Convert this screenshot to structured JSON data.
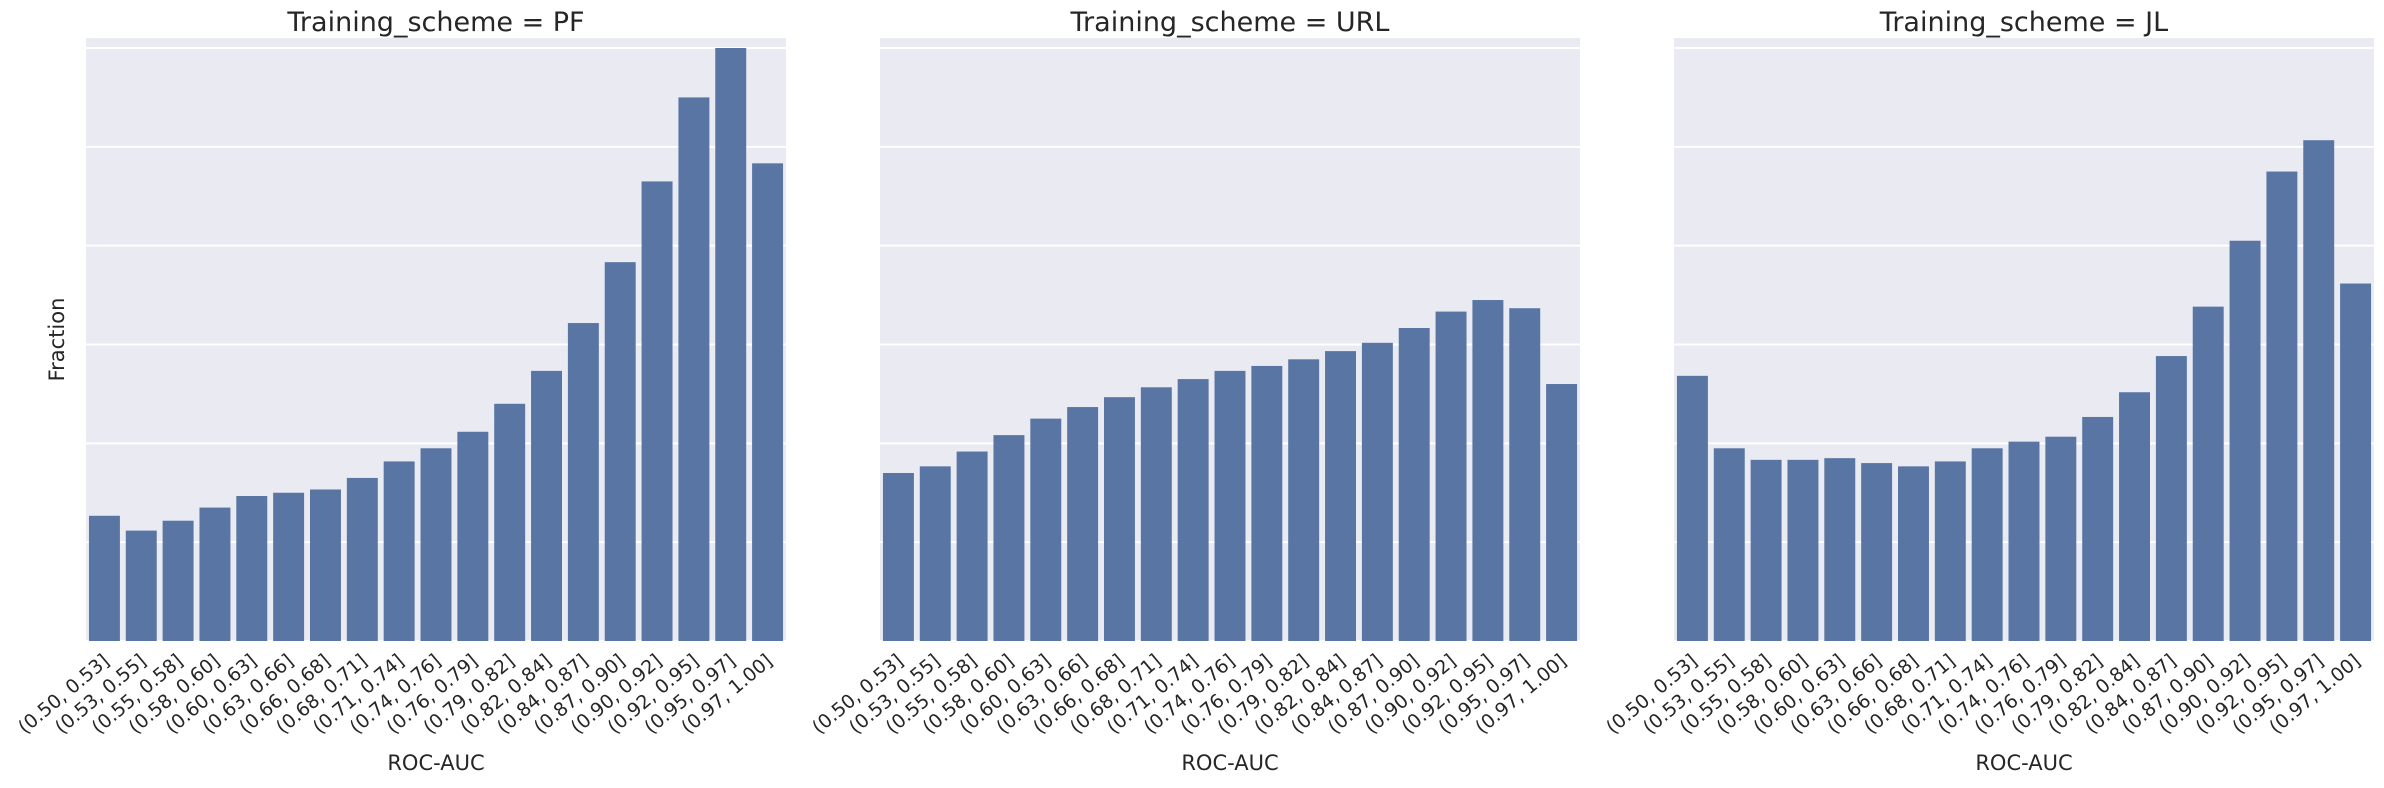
{
  "chart_data": [
    {
      "type": "bar",
      "title": "Training_scheme = PF",
      "xlabel": "ROC-AUC",
      "ylabel": "Fraction",
      "categories": [
        "(0.50, 0.53]",
        "(0.53, 0.55]",
        "(0.55, 0.58]",
        "(0.58, 0.60]",
        "(0.60, 0.63]",
        "(0.63, 0.66]",
        "(0.66, 0.68]",
        "(0.68, 0.71]",
        "(0.71, 0.74]",
        "(0.74, 0.76]",
        "(0.76, 0.79]",
        "(0.79, 0.82]",
        "(0.82, 0.84]",
        "(0.84, 0.87]",
        "(0.87, 0.90]",
        "(0.90, 0.92]",
        "(0.92, 0.95]",
        "(0.95, 0.97]",
        "(0.97, 1.00]"
      ],
      "values": [
        0.1267,
        0.1117,
        0.1217,
        0.135,
        0.1467,
        0.15,
        0.1533,
        0.165,
        0.1817,
        0.195,
        0.2117,
        0.24,
        0.2733,
        0.3217,
        0.3833,
        0.465,
        0.55,
        0.6,
        0.4833
      ],
      "ylim": [
        0,
        0.6
      ],
      "grid": true,
      "color": "#5875A4",
      "background": "#EAEAF2"
    },
    {
      "type": "bar",
      "title": "Training_scheme = URL",
      "xlabel": "ROC-AUC",
      "ylabel": "",
      "categories": [
        "(0.50, 0.53]",
        "(0.53, 0.55]",
        "(0.55, 0.58]",
        "(0.58, 0.60]",
        "(0.60, 0.63]",
        "(0.63, 0.66]",
        "(0.66, 0.68]",
        "(0.68, 0.71]",
        "(0.71, 0.74]",
        "(0.74, 0.76]",
        "(0.76, 0.79]",
        "(0.79, 0.82]",
        "(0.82, 0.84]",
        "(0.84, 0.87]",
        "(0.87, 0.90]",
        "(0.90, 0.92]",
        "(0.92, 0.95]",
        "(0.95, 0.97]",
        "(0.97, 1.00]"
      ],
      "values": [
        0.17,
        0.1767,
        0.1917,
        0.2083,
        0.225,
        0.2367,
        0.2467,
        0.2567,
        0.265,
        0.2733,
        0.2783,
        0.285,
        0.2933,
        0.3017,
        0.3167,
        0.3333,
        0.345,
        0.3367,
        0.26
      ],
      "ylim": [
        0,
        0.6
      ],
      "grid": true,
      "color": "#5875A4",
      "background": "#EAEAF2"
    },
    {
      "type": "bar",
      "title": "Training_scheme = JL",
      "xlabel": "ROC-AUC",
      "ylabel": "",
      "categories": [
        "(0.50, 0.53]",
        "(0.53, 0.55]",
        "(0.55, 0.58]",
        "(0.58, 0.60]",
        "(0.60, 0.63]",
        "(0.63, 0.66]",
        "(0.66, 0.68]",
        "(0.68, 0.71]",
        "(0.71, 0.74]",
        "(0.74, 0.76]",
        "(0.76, 0.79]",
        "(0.79, 0.82]",
        "(0.82, 0.84]",
        "(0.84, 0.87]",
        "(0.87, 0.90]",
        "(0.90, 0.92]",
        "(0.92, 0.95]",
        "(0.95, 0.97]",
        "(0.97, 1.00]"
      ],
      "values": [
        0.2683,
        0.195,
        0.1833,
        0.1833,
        0.185,
        0.18,
        0.1767,
        0.1817,
        0.195,
        0.2017,
        0.2067,
        0.2267,
        0.2517,
        0.2883,
        0.3383,
        0.405,
        0.475,
        0.5067,
        0.3617
      ],
      "ylim": [
        0,
        0.6
      ],
      "grid": true,
      "color": "#5875A4",
      "background": "#EAEAF2"
    }
  ]
}
